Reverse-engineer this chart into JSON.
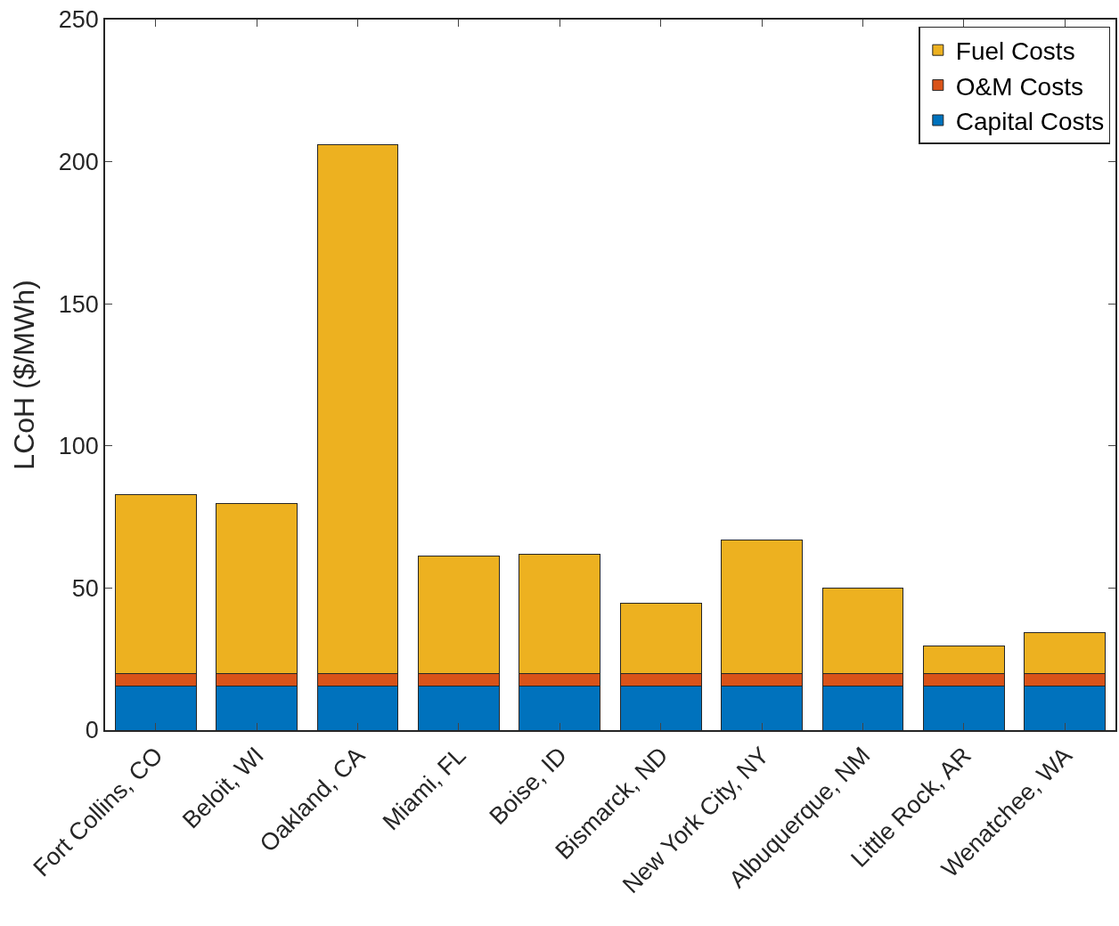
{
  "chart_data": {
    "type": "bar",
    "stacked": true,
    "ylabel": "LCoH ($/MWh)",
    "categories": [
      "Fort Collins, CO",
      "Beloit, WI",
      "Oakland, CA",
      "Miami, FL",
      "Boise, ID",
      "Bismarck, ND",
      "New York City, NY",
      "Albuquerque, NM",
      "Little Rock, AR",
      "Wenatchee, WA"
    ],
    "series": [
      {
        "name": "Capital Costs",
        "color": "#0072bd",
        "values": [
          15.5,
          15.5,
          15.5,
          15.5,
          15.5,
          15.5,
          15.5,
          15.5,
          15.5,
          15.5
        ]
      },
      {
        "name": "O&M Costs",
        "color": "#d95319",
        "values": [
          4.5,
          4.5,
          4.5,
          4.5,
          4.5,
          4.5,
          4.5,
          4.5,
          4.5,
          4.5
        ]
      },
      {
        "name": "Fuel Costs",
        "color": "#edb120",
        "values": [
          62.8,
          59.6,
          186,
          41.2,
          41.9,
          24.8,
          46.9,
          30,
          9.5,
          14.3
        ]
      }
    ],
    "ylim": [
      0,
      250
    ],
    "yticks": [
      0,
      50,
      100,
      150,
      200,
      250
    ],
    "grid": false,
    "legend": "top right"
  }
}
